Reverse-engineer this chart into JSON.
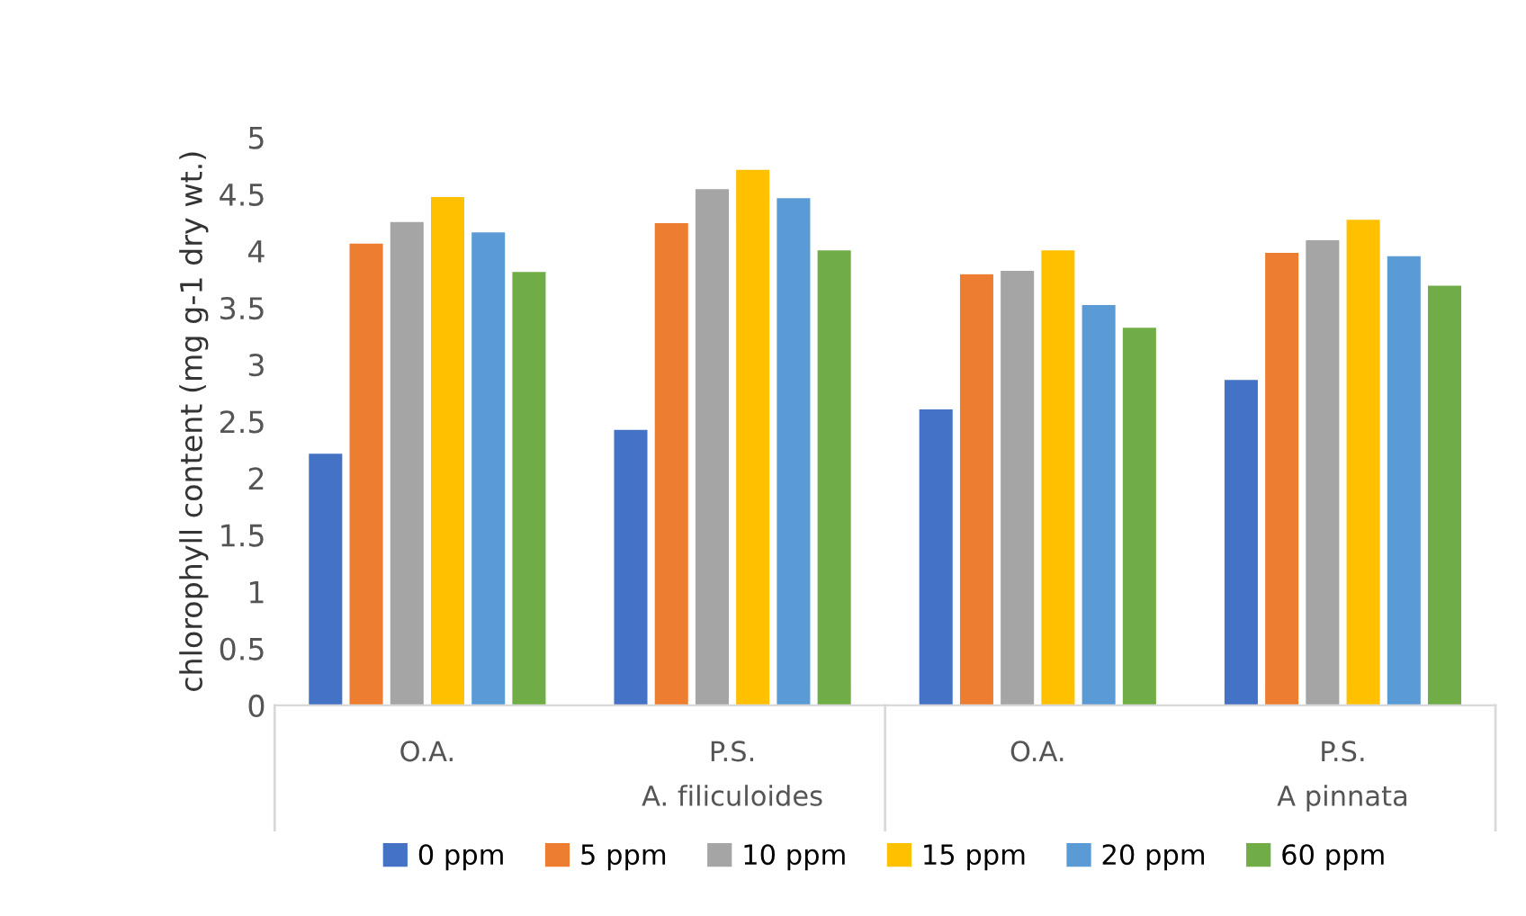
{
  "chart_data": {
    "type": "bar",
    "ylabel": "chlorophyll content (mg g-1 dry wt.)",
    "categories": [
      "O.A.",
      "P.S.",
      "O.A.",
      "P.S."
    ],
    "annotations": [
      "A. filiculoides",
      "A pinnata"
    ],
    "series": [
      {
        "name": "0 ppm",
        "color": "#4472c4",
        "values": [
          2.22,
          2.43,
          2.61,
          2.87
        ]
      },
      {
        "name": "5 ppm",
        "color": "#ed7d31",
        "values": [
          4.07,
          4.25,
          3.8,
          3.99
        ]
      },
      {
        "name": "10 ppm",
        "color": "#a5a5a5",
        "values": [
          4.26,
          4.55,
          3.83,
          4.1
        ]
      },
      {
        "name": "15 ppm",
        "color": "#ffc000",
        "values": [
          4.48,
          4.72,
          4.01,
          4.28
        ]
      },
      {
        "name": "20 ppm",
        "color": "#5b9bd5",
        "values": [
          4.17,
          4.47,
          3.53,
          3.96
        ]
      },
      {
        "name": "60 ppm",
        "color": "#70ad47",
        "values": [
          3.82,
          4.01,
          3.33,
          3.7
        ]
      }
    ],
    "ylim": [
      0,
      5
    ],
    "yticks": [
      0,
      0.5,
      1,
      1.5,
      2,
      2.5,
      3,
      3.5,
      4,
      4.5,
      5
    ],
    "grid": false,
    "legend": "bottom"
  }
}
